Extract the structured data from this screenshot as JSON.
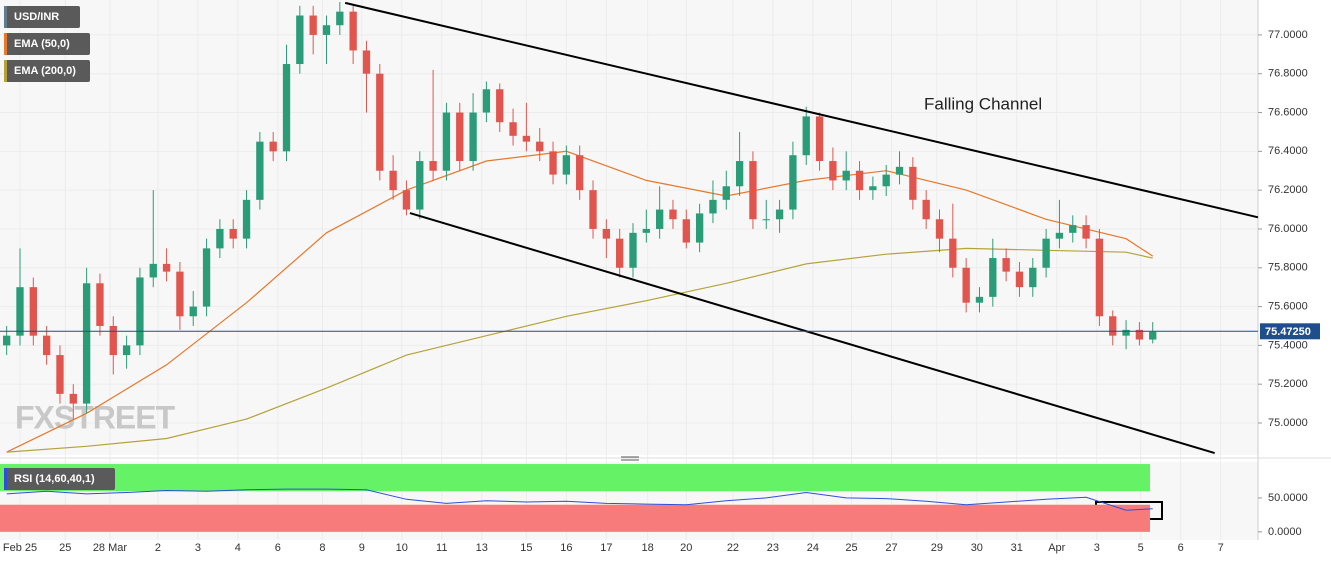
{
  "chart_data": {
    "type": "candlestick",
    "symbol": "USD/INR",
    "annotation": "Falling Channel",
    "watermark": "FXSTREET",
    "up_color": "#2a9d78",
    "down_color": "#e0564f",
    "grid": true,
    "xlim": [
      -0.5,
      93.9
    ],
    "ylim": [
      74.835,
      77.18
    ],
    "xticks": [
      {
        "value": 1.0,
        "label": "Feb 25"
      },
      {
        "value": 4.4,
        "label": "25"
      },
      {
        "value": 7.75,
        "label": "28 Mar"
      },
      {
        "value": 11.35,
        "label": "2"
      },
      {
        "value": 14.35,
        "label": "3"
      },
      {
        "value": 17.35,
        "label": "4"
      },
      {
        "value": 20.35,
        "label": "6"
      },
      {
        "value": 23.7,
        "label": "8"
      },
      {
        "value": 26.65,
        "label": "9"
      },
      {
        "value": 29.65,
        "label": "10"
      },
      {
        "value": 32.65,
        "label": "11"
      },
      {
        "value": 35.65,
        "label": "13"
      },
      {
        "value": 39.0,
        "label": "15"
      },
      {
        "value": 42.0,
        "label": "16"
      },
      {
        "value": 45.0,
        "label": "17"
      },
      {
        "value": 48.1,
        "label": "18"
      },
      {
        "value": 51.0,
        "label": "20"
      },
      {
        "value": 54.5,
        "label": "22"
      },
      {
        "value": 57.5,
        "label": "23"
      },
      {
        "value": 60.5,
        "label": "24"
      },
      {
        "value": 63.4,
        "label": "25"
      },
      {
        "value": 66.4,
        "label": "27"
      },
      {
        "value": 69.8,
        "label": "29"
      },
      {
        "value": 72.8,
        "label": "30"
      },
      {
        "value": 75.8,
        "label": "31"
      },
      {
        "value": 78.8,
        "label": "Apr"
      },
      {
        "value": 81.8,
        "label": "3"
      },
      {
        "value": 85.1,
        "label": "5"
      },
      {
        "value": 88.1,
        "label": "6"
      },
      {
        "value": 91.1,
        "label": "7"
      }
    ],
    "yticks": [
      {
        "value": 75.0,
        "label": "75.0000"
      },
      {
        "value": 75.2,
        "label": "75.2000"
      },
      {
        "value": 75.4,
        "label": "75.4000"
      },
      {
        "value": 75.6,
        "label": "75.6000"
      },
      {
        "value": 75.8,
        "label": "75.8000"
      },
      {
        "value": 76.0,
        "label": "76.0000"
      },
      {
        "value": 76.2,
        "label": "76.2000"
      },
      {
        "value": 76.4,
        "label": "76.4000"
      },
      {
        "value": 76.6,
        "label": "76.6000"
      },
      {
        "value": 76.8,
        "label": "76.8000"
      },
      {
        "value": 77.0,
        "label": "77.0000"
      }
    ],
    "last_price": {
      "value": 75.4725,
      "label": "75.47250",
      "color": "#1f4e8c"
    },
    "candles": [
      [
        75.4,
        75.5,
        75.35,
        75.45
      ],
      [
        75.45,
        75.9,
        75.4,
        75.7
      ],
      [
        75.7,
        75.75,
        75.4,
        75.45
      ],
      [
        75.45,
        75.5,
        75.3,
        75.35
      ],
      [
        75.35,
        75.4,
        75.1,
        75.15
      ],
      [
        75.15,
        75.2,
        75.02,
        75.1
      ],
      [
        75.1,
        75.8,
        75.05,
        75.72
      ],
      [
        75.72,
        75.77,
        75.45,
        75.5
      ],
      [
        75.5,
        75.55,
        75.25,
        75.35
      ],
      [
        75.35,
        75.45,
        75.28,
        75.4
      ],
      [
        75.4,
        75.8,
        75.35,
        75.75
      ],
      [
        75.75,
        76.2,
        75.7,
        75.82
      ],
      [
        75.82,
        75.9,
        75.73,
        75.78
      ],
      [
        75.78,
        75.83,
        75.48,
        75.55
      ],
      [
        75.55,
        75.68,
        75.5,
        75.6
      ],
      [
        75.6,
        75.95,
        75.55,
        75.9
      ],
      [
        75.9,
        76.05,
        75.85,
        76.0
      ],
      [
        76.0,
        76.05,
        75.9,
        75.95
      ],
      [
        75.95,
        76.2,
        75.9,
        76.15
      ],
      [
        76.15,
        76.5,
        76.1,
        76.45
      ],
      [
        76.45,
        76.5,
        76.35,
        76.4
      ],
      [
        76.4,
        76.95,
        76.35,
        76.85
      ],
      [
        76.85,
        77.15,
        76.8,
        77.1
      ],
      [
        77.1,
        77.15,
        76.9,
        77.0
      ],
      [
        77.0,
        77.1,
        76.85,
        77.05
      ],
      [
        77.05,
        77.17,
        77.0,
        77.12
      ],
      [
        77.12,
        77.15,
        76.85,
        76.92
      ],
      [
        76.92,
        76.97,
        76.6,
        76.8
      ],
      [
        76.8,
        76.85,
        76.25,
        76.3
      ],
      [
        76.3,
        76.38,
        76.15,
        76.2
      ],
      [
        76.2,
        76.25,
        76.07,
        76.1
      ],
      [
        76.1,
        76.4,
        76.05,
        76.35
      ],
      [
        76.35,
        76.82,
        76.25,
        76.3
      ],
      [
        76.3,
        76.65,
        76.25,
        76.6
      ],
      [
        76.6,
        76.65,
        76.3,
        76.35
      ],
      [
        76.35,
        76.7,
        76.3,
        76.6
      ],
      [
        76.6,
        76.76,
        76.55,
        76.72
      ],
      [
        76.72,
        76.75,
        76.5,
        76.55
      ],
      [
        76.55,
        76.62,
        76.43,
        76.48
      ],
      [
        76.48,
        76.65,
        76.4,
        76.45
      ],
      [
        76.45,
        76.52,
        76.35,
        76.4
      ],
      [
        76.4,
        76.45,
        76.23,
        76.28
      ],
      [
        76.28,
        76.43,
        76.23,
        76.38
      ],
      [
        76.38,
        76.43,
        76.15,
        76.2
      ],
      [
        76.2,
        76.25,
        75.95,
        76.0
      ],
      [
        76.0,
        76.05,
        75.85,
        75.95
      ],
      [
        75.95,
        76.0,
        75.75,
        75.8
      ],
      [
        75.8,
        76.03,
        75.75,
        75.98
      ],
      [
        75.98,
        76.1,
        75.93,
        76.0
      ],
      [
        76.0,
        76.22,
        75.95,
        76.1
      ],
      [
        76.1,
        76.15,
        76.0,
        76.05
      ],
      [
        76.05,
        76.1,
        75.9,
        75.93
      ],
      [
        75.93,
        76.13,
        75.88,
        76.08
      ],
      [
        76.08,
        76.25,
        76.03,
        76.15
      ],
      [
        76.15,
        76.3,
        76.1,
        76.22
      ],
      [
        76.22,
        76.5,
        76.17,
        76.35
      ],
      [
        76.35,
        76.4,
        76.0,
        76.05
      ],
      [
        76.05,
        76.15,
        76.0,
        76.05
      ],
      [
        76.05,
        76.15,
        75.98,
        76.1
      ],
      [
        76.1,
        76.45,
        76.05,
        76.38
      ],
      [
        76.38,
        76.63,
        76.33,
        76.58
      ],
      [
        76.58,
        76.6,
        76.3,
        76.35
      ],
      [
        76.35,
        76.42,
        76.2,
        76.25
      ],
      [
        76.25,
        76.4,
        76.2,
        76.3
      ],
      [
        76.3,
        76.35,
        76.15,
        76.2
      ],
      [
        76.2,
        76.27,
        76.15,
        76.22
      ],
      [
        76.22,
        76.33,
        76.17,
        76.28
      ],
      [
        76.28,
        76.4,
        76.23,
        76.32
      ],
      [
        76.32,
        76.37,
        76.1,
        76.15
      ],
      [
        76.15,
        76.2,
        76.0,
        76.05
      ],
      [
        76.05,
        76.1,
        75.88,
        75.95
      ],
      [
        75.95,
        76.13,
        75.75,
        75.8
      ],
      [
        75.8,
        75.85,
        75.57,
        75.62
      ],
      [
        75.62,
        75.7,
        75.57,
        75.65
      ],
      [
        75.65,
        75.95,
        75.6,
        75.85
      ],
      [
        75.85,
        75.9,
        75.73,
        75.78
      ],
      [
        75.78,
        75.83,
        75.65,
        75.7
      ],
      [
        75.7,
        75.85,
        75.65,
        75.8
      ],
      [
        75.8,
        76.0,
        75.75,
        75.95
      ],
      [
        75.95,
        76.15,
        75.9,
        75.98
      ],
      [
        75.98,
        76.07,
        75.93,
        76.02
      ],
      [
        76.02,
        76.07,
        75.9,
        75.95
      ],
      [
        75.95,
        76.0,
        75.5,
        75.55
      ],
      [
        75.55,
        75.58,
        75.4,
        75.45
      ],
      [
        75.45,
        75.53,
        75.38,
        75.48
      ],
      [
        75.48,
        75.52,
        75.4,
        75.43
      ],
      [
        75.43,
        75.52,
        75.41,
        75.47
      ]
    ],
    "series": [
      {
        "name": "EMA (50,0)",
        "color": "#e8782a",
        "x": [
          0,
          6,
          12,
          18,
          24,
          30,
          36,
          42,
          48,
          54,
          60,
          66,
          72,
          78,
          84,
          86
        ],
        "values": [
          74.85,
          75.05,
          75.3,
          75.62,
          75.98,
          76.2,
          76.35,
          76.4,
          76.25,
          76.17,
          76.25,
          76.3,
          76.2,
          76.05,
          75.95,
          75.86
        ]
      },
      {
        "name": "EMA (200,0)",
        "color": "#b5a33a",
        "x": [
          0,
          6,
          12,
          18,
          24,
          30,
          36,
          42,
          48,
          54,
          60,
          66,
          72,
          78,
          84,
          86
        ],
        "values": [
          74.85,
          74.88,
          74.92,
          75.02,
          75.18,
          75.35,
          75.45,
          75.55,
          75.63,
          75.72,
          75.82,
          75.87,
          75.9,
          75.89,
          75.88,
          75.85
        ]
      }
    ],
    "channel": [
      {
        "x": [
          25.4,
          93.9
        ],
        "y": [
          77.165,
          76.06
        ]
      },
      {
        "x": [
          30.26,
          90.65
        ],
        "y": [
          76.082,
          74.845
        ]
      }
    ],
    "rsi": {
      "name": "RSI (14,60,40,1)",
      "color": "#2f4fd8",
      "ylim": [
        -12,
        103
      ],
      "yticks": [
        {
          "value": 50,
          "label": "50.0000"
        },
        {
          "value": 0,
          "label": "0.0000"
        }
      ],
      "bands": [
        {
          "range": [
            60,
            100
          ],
          "color": "#66f266"
        },
        {
          "range": [
            0,
            40
          ],
          "color": "#f77b7b"
        }
      ],
      "x": [
        0,
        3,
        6,
        9,
        12,
        15,
        18,
        21,
        24,
        27,
        30,
        33,
        36,
        39,
        42,
        45,
        48,
        51,
        54,
        57,
        60,
        63,
        66,
        69,
        72,
        75,
        78,
        81,
        84,
        86
      ],
      "values": [
        56,
        60,
        56,
        58,
        61,
        60,
        62,
        63,
        63,
        62,
        48,
        42,
        46,
        44,
        45,
        42,
        41,
        40,
        46,
        50,
        58,
        50,
        49,
        45,
        40,
        44,
        48,
        51,
        32,
        34
      ]
    }
  }
}
